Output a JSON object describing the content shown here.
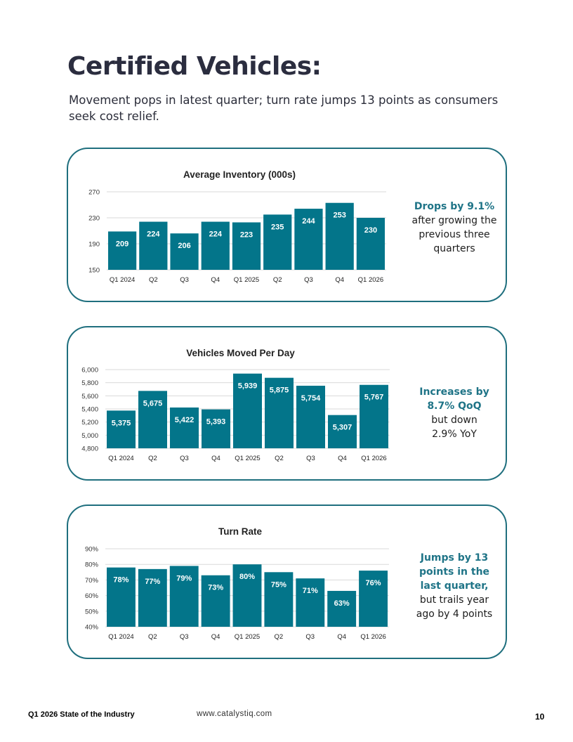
{
  "page": {
    "title": "Certified Vehicles:",
    "subtitle": "Movement pops in latest quarter; turn rate jumps 13 points as consumers seek cost relief."
  },
  "chart_data": [
    {
      "type": "bar",
      "title": "Average Inventory (000s)",
      "categories": [
        "Q1 2024",
        "Q2",
        "Q3",
        "Q4",
        "Q1 2025",
        "Q2",
        "Q3",
        "Q4",
        "Q1 2026"
      ],
      "values": [
        209,
        224,
        206,
        224,
        223,
        235,
        244,
        253,
        230
      ],
      "value_labels": [
        "209",
        "224",
        "206",
        "224",
        "223",
        "235",
        "244",
        "253",
        "230"
      ],
      "yticks": [
        "150",
        "190",
        "230",
        "270"
      ],
      "ylim": [
        150,
        270
      ],
      "grid": true,
      "bar_color": "#03758a",
      "note_highlight": "Drops by 9.1%",
      "note_text": "after growing the previous three quarters"
    },
    {
      "type": "bar",
      "title": "Vehicles Moved Per Day",
      "categories": [
        "Q1 2024",
        "Q2",
        "Q3",
        "Q4",
        "Q1 2025",
        "Q2",
        "Q3",
        "Q4",
        "Q1 2026"
      ],
      "values": [
        5375,
        5675,
        5422,
        5393,
        5939,
        5875,
        5754,
        5307,
        5767
      ],
      "value_labels": [
        "5,375",
        "5,675",
        "5,422",
        "5,393",
        "5,939",
        "5,875",
        "5,754",
        "5,307",
        "5,767"
      ],
      "yticks": [
        "4,800",
        "5,000",
        "5,200",
        "5,400",
        "5,600",
        "5,800",
        "6,000"
      ],
      "ylim": [
        4800,
        6000
      ],
      "grid": true,
      "bar_color": "#03758a",
      "note_highlight": "Increases by 8.7% QoQ",
      "note_text": "but down 2.9% YoY"
    },
    {
      "type": "bar",
      "title": "Turn Rate",
      "categories": [
        "Q1 2024",
        "Q2",
        "Q3",
        "Q4",
        "Q1 2025",
        "Q2",
        "Q3",
        "Q4",
        "Q1 2026"
      ],
      "values": [
        78,
        77,
        79,
        73,
        80,
        75,
        71,
        63,
        76
      ],
      "value_labels": [
        "78%",
        "77%",
        "79%",
        "73%",
        "80%",
        "75%",
        "71%",
        "63%",
        "76%"
      ],
      "yticks": [
        "40%",
        "50%",
        "60%",
        "70%",
        "80%",
        "90%"
      ],
      "ylim": [
        40,
        90
      ],
      "grid": true,
      "bar_color": "#03758a",
      "note_highlight": "Jumps by 13 points in the last quarter,",
      "note_text": "but trails year ago by 4 points"
    }
  ],
  "footer": {
    "left": "Q1 2026 State of the Industry",
    "center": "www.catalystiq.com",
    "page_number": "10"
  }
}
